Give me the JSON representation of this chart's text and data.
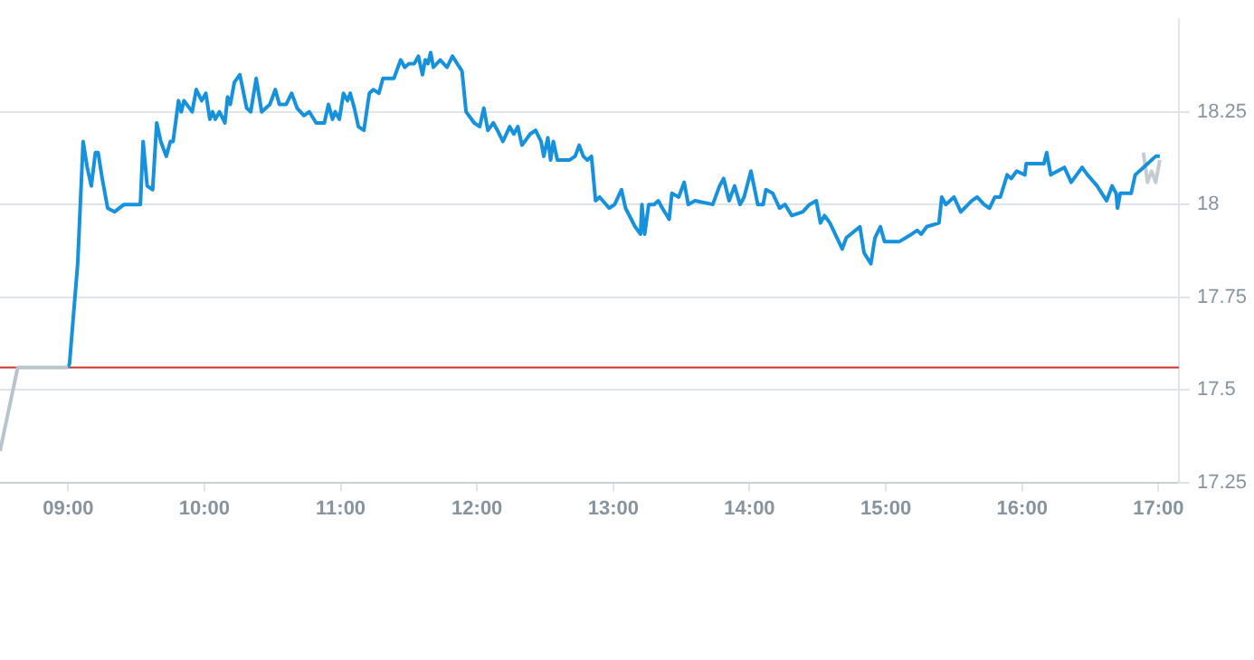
{
  "chart_data": {
    "type": "line",
    "xlim": [
      8.5,
      17.15
    ],
    "xticks": [
      {
        "value": 9,
        "label": "09:00"
      },
      {
        "value": 10,
        "label": "10:00"
      },
      {
        "value": 11,
        "label": "11:00"
      },
      {
        "value": 12,
        "label": "12:00"
      },
      {
        "value": 13,
        "label": "13:00"
      },
      {
        "value": 14,
        "label": "14:00"
      },
      {
        "value": 15,
        "label": "15:00"
      },
      {
        "value": 16,
        "label": "16:00"
      },
      {
        "value": 17,
        "label": "17:00"
      }
    ],
    "ylim": [
      17.25,
      18.5
    ],
    "yticks": [
      17.25,
      17.5,
      17.75,
      18,
      18.25
    ],
    "grid": "y",
    "legend": false,
    "marker": "none",
    "series": [
      {
        "color": "#b8c4cc",
        "x": [
          8.5,
          8.63,
          9.0
        ],
        "values": [
          17.335,
          17.56,
          17.56
        ]
      },
      {
        "color": "#1591de",
        "x": [
          9.0,
          9.01,
          9.07,
          9.11,
          9.14,
          9.17,
          9.2,
          9.22,
          9.25,
          9.29,
          9.34,
          9.41,
          9.53,
          9.55,
          9.58,
          9.62,
          9.65,
          9.68,
          9.72,
          9.75,
          9.77,
          9.81,
          9.83,
          9.85,
          9.91,
          9.94,
          9.98,
          10.01,
          10.04,
          10.06,
          10.08,
          10.11,
          10.15,
          10.17,
          10.19,
          10.22,
          10.26,
          10.31,
          10.34,
          10.38,
          10.42,
          10.48,
          10.52,
          10.55,
          10.6,
          10.64,
          10.68,
          10.73,
          10.77,
          10.82,
          10.88,
          10.91,
          10.94,
          10.96,
          10.99,
          11.02,
          11.05,
          11.07,
          11.1,
          11.13,
          11.17,
          11.21,
          11.24,
          11.28,
          11.31,
          11.39,
          11.44,
          11.47,
          11.5,
          11.54,
          11.57,
          11.6,
          11.62,
          11.64,
          11.66,
          11.68,
          11.73,
          11.78,
          11.82,
          11.89,
          11.92,
          11.98,
          12.02,
          12.05,
          12.08,
          12.12,
          12.15,
          12.19,
          12.24,
          12.27,
          12.3,
          12.33,
          12.39,
          12.43,
          12.47,
          12.49,
          12.52,
          12.54,
          12.56,
          12.59,
          12.68,
          12.72,
          12.75,
          12.78,
          12.81,
          12.84,
          12.87,
          12.9,
          12.97,
          13.01,
          13.06,
          13.09,
          13.16,
          13.2,
          13.21,
          13.23,
          13.26,
          13.3,
          13.33,
          13.36,
          13.41,
          13.43,
          13.48,
          13.52,
          13.55,
          13.6,
          13.73,
          13.78,
          13.81,
          13.85,
          13.89,
          13.93,
          13.96,
          14.01,
          14.06,
          14.1,
          14.12,
          14.17,
          14.22,
          14.26,
          14.31,
          14.39,
          14.44,
          14.49,
          14.52,
          14.55,
          14.59,
          14.68,
          14.71,
          14.81,
          14.84,
          14.89,
          14.92,
          14.96,
          14.99,
          15.1,
          15.19,
          15.23,
          15.26,
          15.3,
          15.39,
          15.41,
          15.44,
          15.5,
          15.55,
          15.63,
          15.67,
          15.72,
          15.76,
          15.8,
          15.84,
          15.89,
          15.92,
          15.96,
          16.02,
          16.03,
          16.16,
          16.18,
          16.21,
          16.31,
          16.36,
          16.44,
          16.48,
          16.55,
          16.62,
          16.66,
          16.69,
          16.7,
          16.72,
          16.8,
          16.83,
          16.89,
          16.98,
          17.01
        ],
        "values": [
          17.56,
          17.57,
          17.84,
          18.17,
          18.1,
          18.05,
          18.14,
          18.14,
          18.07,
          17.99,
          17.98,
          18.0,
          18.0,
          18.17,
          18.05,
          18.04,
          18.22,
          18.17,
          18.13,
          18.17,
          18.17,
          18.28,
          18.25,
          18.28,
          18.25,
          18.31,
          18.28,
          18.3,
          18.23,
          18.25,
          18.23,
          18.25,
          18.22,
          18.29,
          18.27,
          18.33,
          18.35,
          18.26,
          18.25,
          18.34,
          18.25,
          18.27,
          18.31,
          18.27,
          18.27,
          18.3,
          18.26,
          18.24,
          18.25,
          18.22,
          18.22,
          18.27,
          18.23,
          18.25,
          18.23,
          18.3,
          18.28,
          18.3,
          18.26,
          18.21,
          18.2,
          18.3,
          18.31,
          18.3,
          18.34,
          18.34,
          18.39,
          18.37,
          18.38,
          18.38,
          18.4,
          18.35,
          18.39,
          18.38,
          18.41,
          18.37,
          18.39,
          18.37,
          18.4,
          18.36,
          18.25,
          18.22,
          18.21,
          18.26,
          18.2,
          18.22,
          18.2,
          18.17,
          18.21,
          18.19,
          18.21,
          18.16,
          18.19,
          18.2,
          18.17,
          18.13,
          18.18,
          18.12,
          18.17,
          18.12,
          18.12,
          18.13,
          18.16,
          18.13,
          18.12,
          18.13,
          18.01,
          18.02,
          17.99,
          18.0,
          18.04,
          17.99,
          17.94,
          17.92,
          18.0,
          17.92,
          18.0,
          18.0,
          18.01,
          17.99,
          17.96,
          18.03,
          18.02,
          18.06,
          18.0,
          18.01,
          18.0,
          18.05,
          18.07,
          18.01,
          18.05,
          18.0,
          18.02,
          18.09,
          18.0,
          18.0,
          18.04,
          18.03,
          17.99,
          18.0,
          17.97,
          17.98,
          18.0,
          18.01,
          17.95,
          17.97,
          17.95,
          17.88,
          17.91,
          17.94,
          17.87,
          17.84,
          17.91,
          17.94,
          17.9,
          17.9,
          17.92,
          17.93,
          17.92,
          17.94,
          17.95,
          18.02,
          18.0,
          18.02,
          17.98,
          18.01,
          18.02,
          18.0,
          17.99,
          18.02,
          18.02,
          18.08,
          18.07,
          18.09,
          18.08,
          18.11,
          18.11,
          18.14,
          18.08,
          18.1,
          18.06,
          18.1,
          18.08,
          18.05,
          18.01,
          18.05,
          18.03,
          17.99,
          18.03,
          18.03,
          18.08,
          18.1,
          18.13,
          18.13
        ]
      },
      {
        "color": "#c4ccd2",
        "x": [
          16.89,
          16.92,
          16.95,
          16.98,
          17.01
        ],
        "values": [
          18.14,
          18.06,
          18.09,
          18.06,
          18.12
        ]
      }
    ],
    "ref_lines": [
      {
        "axis": "y",
        "value": 17.56,
        "color": "#d0302c"
      }
    ]
  }
}
